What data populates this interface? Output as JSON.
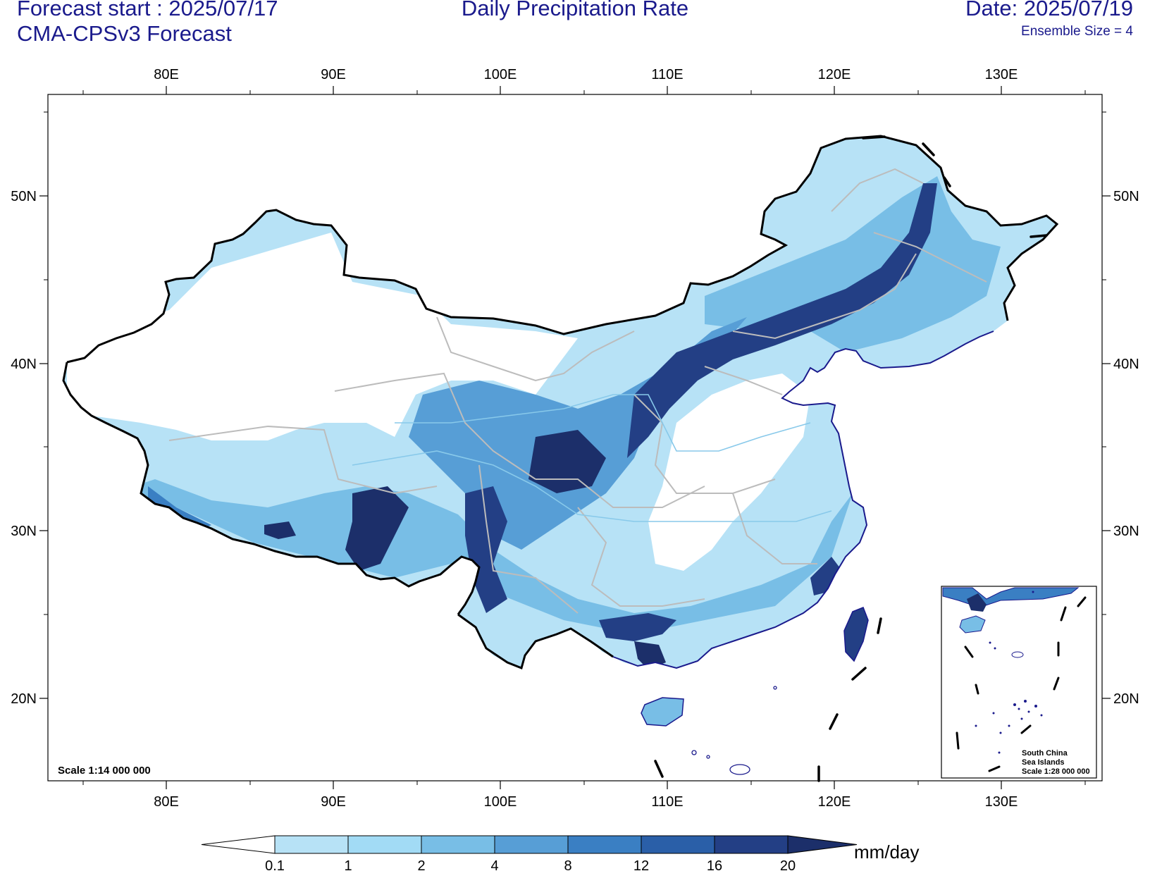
{
  "header": {
    "forecast_start": "Forecast start : 2025/07/17",
    "model": "CMA-CPSv3 Forecast",
    "title": "Daily Precipitation Rate",
    "date": "Date: 2025/07/19",
    "ensemble": "Ensemble Size = 4"
  },
  "map": {
    "lon_ticks": [
      "80E",
      "90E",
      "100E",
      "110E",
      "120E",
      "130E"
    ],
    "lat_ticks": [
      "50N",
      "40N",
      "30N",
      "20N"
    ],
    "scale_label": "Scale 1:14 000 000",
    "inset": {
      "line1": "South China",
      "line2": "Sea Islands",
      "line3": "Scale 1:28 000 000"
    }
  },
  "colorbar": {
    "labels": [
      "0.1",
      "1",
      "2",
      "4",
      "8",
      "12",
      "16",
      "20"
    ],
    "colors": [
      "#ffffff",
      "#b7e2f6",
      "#a2dbf5",
      "#78bee6",
      "#579ed6",
      "#3a7fc3",
      "#2a5fa8",
      "#233f85",
      "#1c2f6a"
    ],
    "units": "mm/day"
  }
}
